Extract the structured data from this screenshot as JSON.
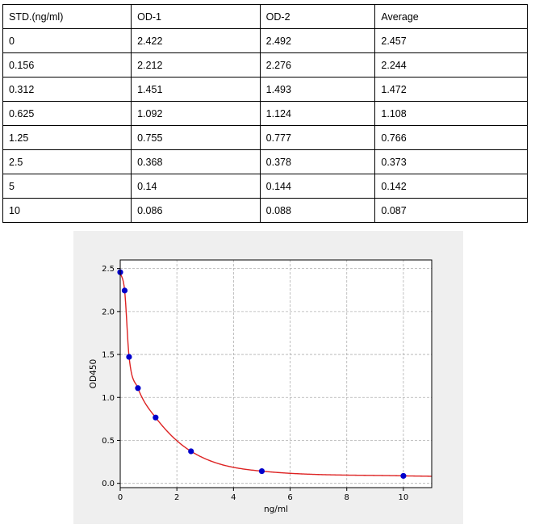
{
  "table": {
    "headers": [
      "STD.(ng/ml)",
      "OD-1",
      "OD-2",
      "Average"
    ],
    "rows": [
      [
        "0",
        "2.422",
        "2.492",
        "2.457"
      ],
      [
        "0.156",
        "2.212",
        "2.276",
        "2.244"
      ],
      [
        "0.312",
        "1.451",
        "1.493",
        "1.472"
      ],
      [
        "0.625",
        "1.092",
        "1.124",
        "1.108"
      ],
      [
        "1.25",
        "0.755",
        "0.777",
        "0.766"
      ],
      [
        "2.5",
        "0.368",
        "0.378",
        "0.373"
      ],
      [
        "5",
        "0.14",
        "0.144",
        "0.142"
      ],
      [
        "10",
        "0.086",
        "0.088",
        "0.087"
      ]
    ]
  },
  "chart_data": {
    "type": "scatter",
    "title": "",
    "xlabel": "ng/ml",
    "ylabel": "OD450",
    "xlim": [
      0,
      11
    ],
    "ylim": [
      -0.05,
      2.6
    ],
    "xticks": [
      0,
      2,
      4,
      6,
      8,
      10
    ],
    "yticks": [
      0.0,
      0.5,
      1.0,
      1.5,
      2.0,
      2.5
    ],
    "ytick_labels": [
      "0.0",
      "0.5",
      "1.0",
      "1.5",
      "2.0",
      "2.5"
    ],
    "grid": true,
    "x": [
      0,
      0.156,
      0.312,
      0.625,
      1.25,
      2.5,
      5,
      10
    ],
    "y": [
      2.457,
      2.244,
      1.472,
      1.108,
      0.766,
      0.373,
      0.142,
      0.087
    ],
    "point_color": "#0000cc",
    "curve_color": "#dd2222"
  }
}
